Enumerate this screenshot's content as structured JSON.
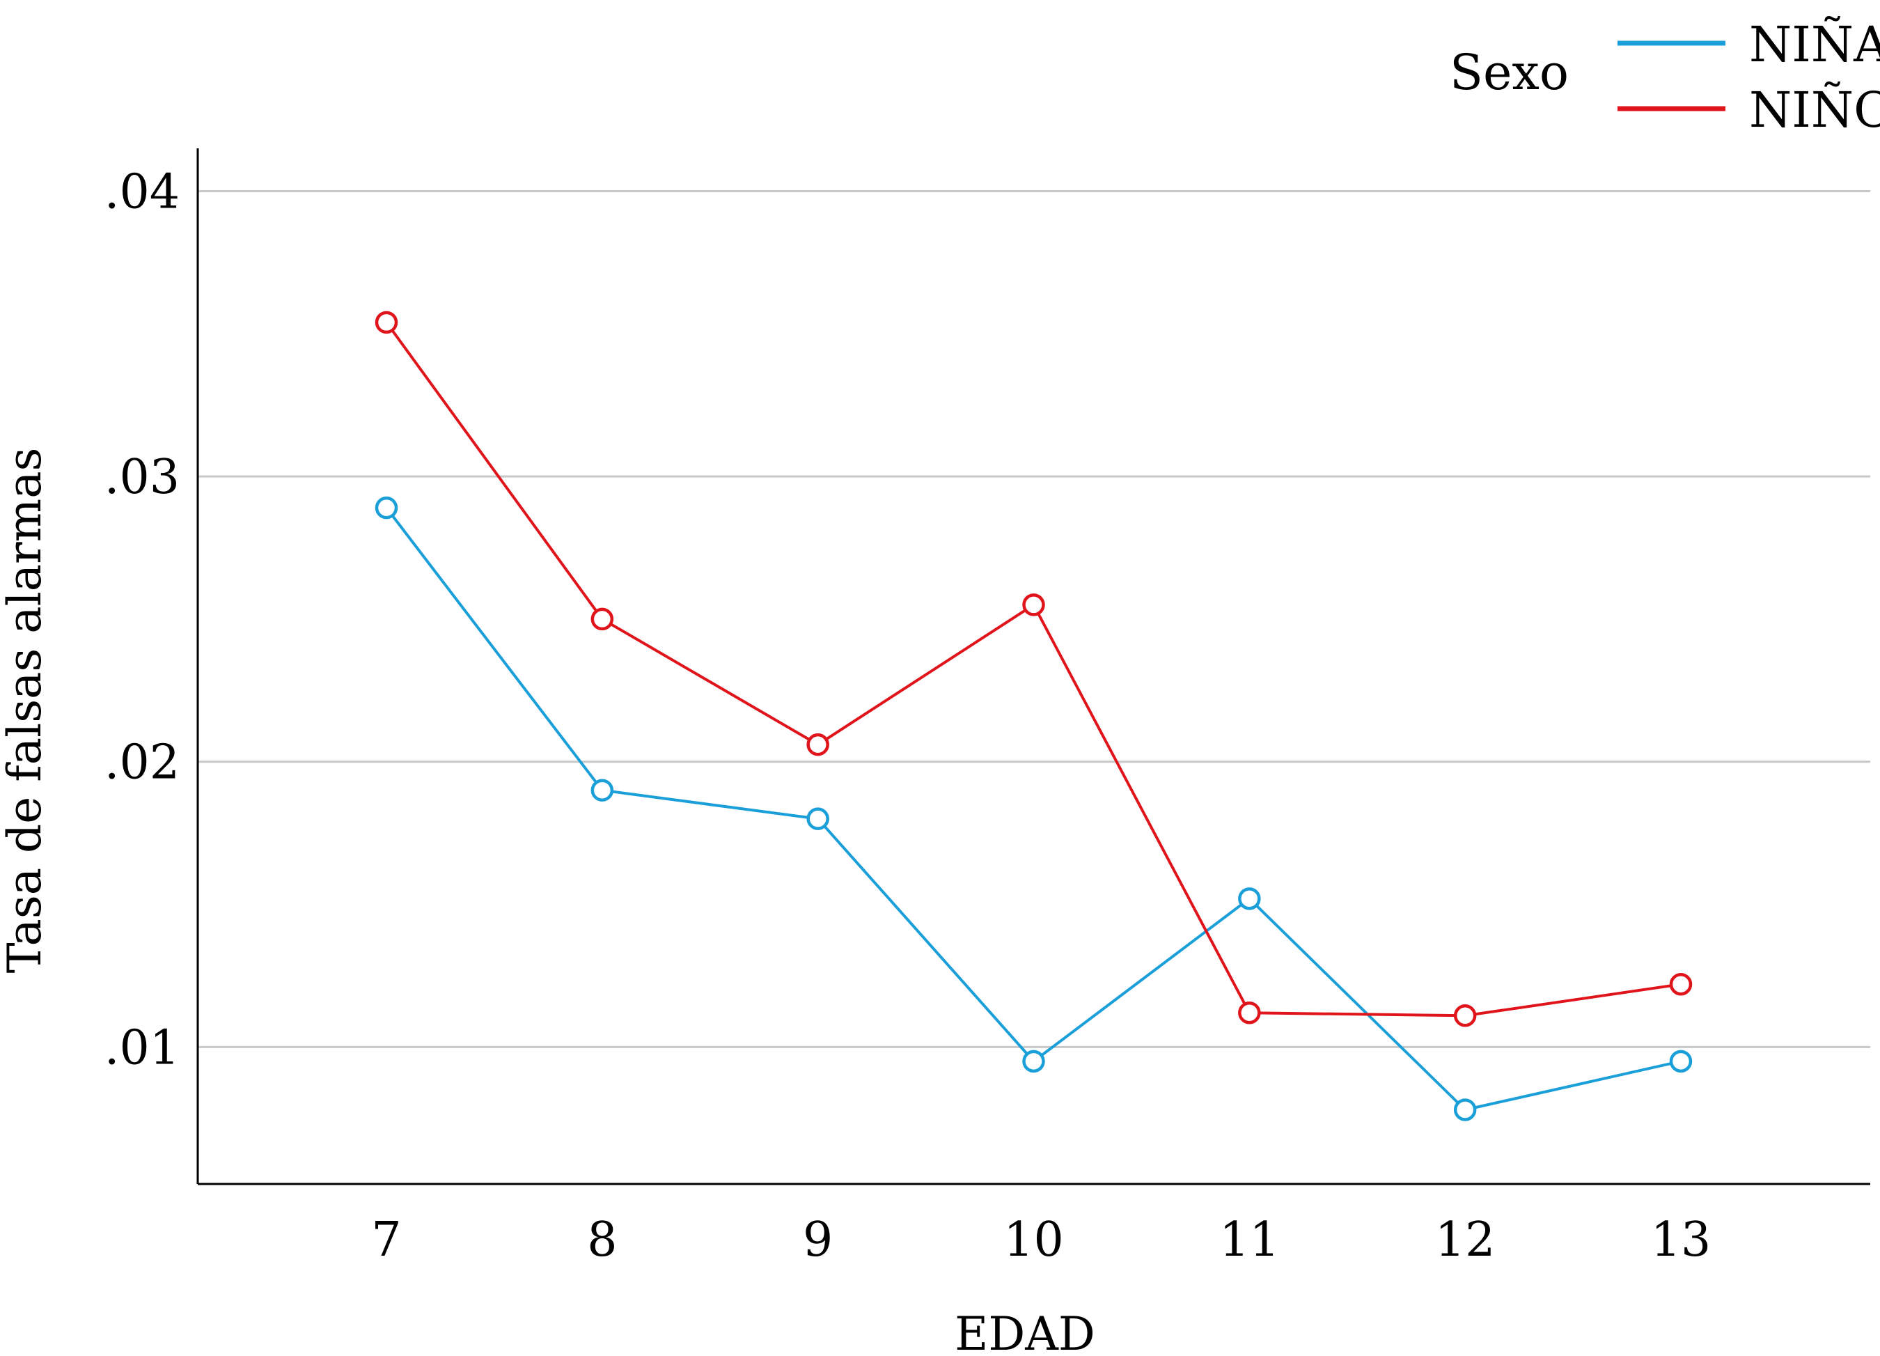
{
  "chart_data": {
    "type": "line",
    "xlabel": "EDAD",
    "ylabel": "Tasa de falsas alarmas",
    "categories": [
      "7",
      "8",
      "9",
      "10",
      "11",
      "12",
      "13"
    ],
    "yticks": [
      ".01",
      ".02",
      ".03",
      ".04"
    ],
    "ytick_values": [
      0.01,
      0.02,
      0.03,
      0.04
    ],
    "ylim": [
      0.0052,
      0.0415
    ],
    "grid": "horizontal",
    "legend": {
      "title": "Sexo",
      "position": "top-right"
    },
    "series": [
      {
        "name": "NIÑA",
        "color": "#1a9fd9",
        "marker": "open-circle",
        "x": [
          7.0,
          8.0,
          9.0,
          10.0,
          11.0,
          12.0,
          13.0
        ],
        "values": [
          0.0289,
          0.019,
          0.018,
          0.0095,
          0.0152,
          0.0078,
          0.0095
        ]
      },
      {
        "name": "NIÑO",
        "color": "#e0141b",
        "marker": "open-circle",
        "x": [
          7.0,
          8.0,
          9.0,
          10.0,
          11.0,
          12.0,
          13.0
        ],
        "values": [
          0.0354,
          0.025,
          0.0206,
          0.0255,
          0.0112,
          0.0111,
          0.0122
        ]
      }
    ]
  }
}
